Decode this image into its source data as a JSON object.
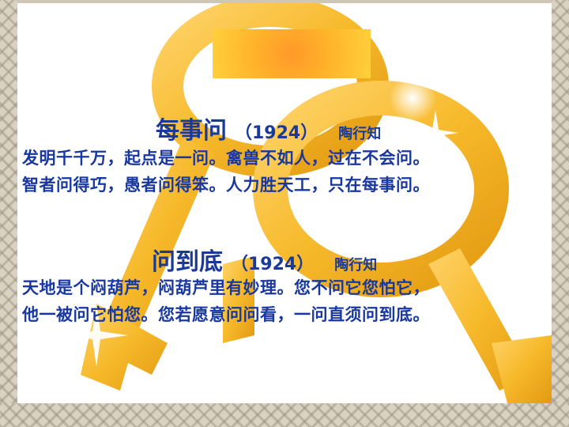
{
  "poems": [
    {
      "title": "每事问",
      "year": "（1924）",
      "author": "陶行知",
      "lines": [
        "发明千千万，起点是一问。禽兽不如人，过在不会问。",
        "智者问得巧，愚者问得笨。人力胜天工，只在每事问。"
      ]
    },
    {
      "title": "问到底",
      "year": "（1924）",
      "author": "陶行知",
      "lines": [
        "天地是个闷葫芦，闷葫芦里有妙理。您不问它您怕它，",
        "他一被问它怕您。您若愿意问问看，一问直须问到底。"
      ]
    }
  ],
  "colors": {
    "text": "#1838a0",
    "key_gold": "#f6b92a",
    "title_box": "#ff9a2a"
  }
}
